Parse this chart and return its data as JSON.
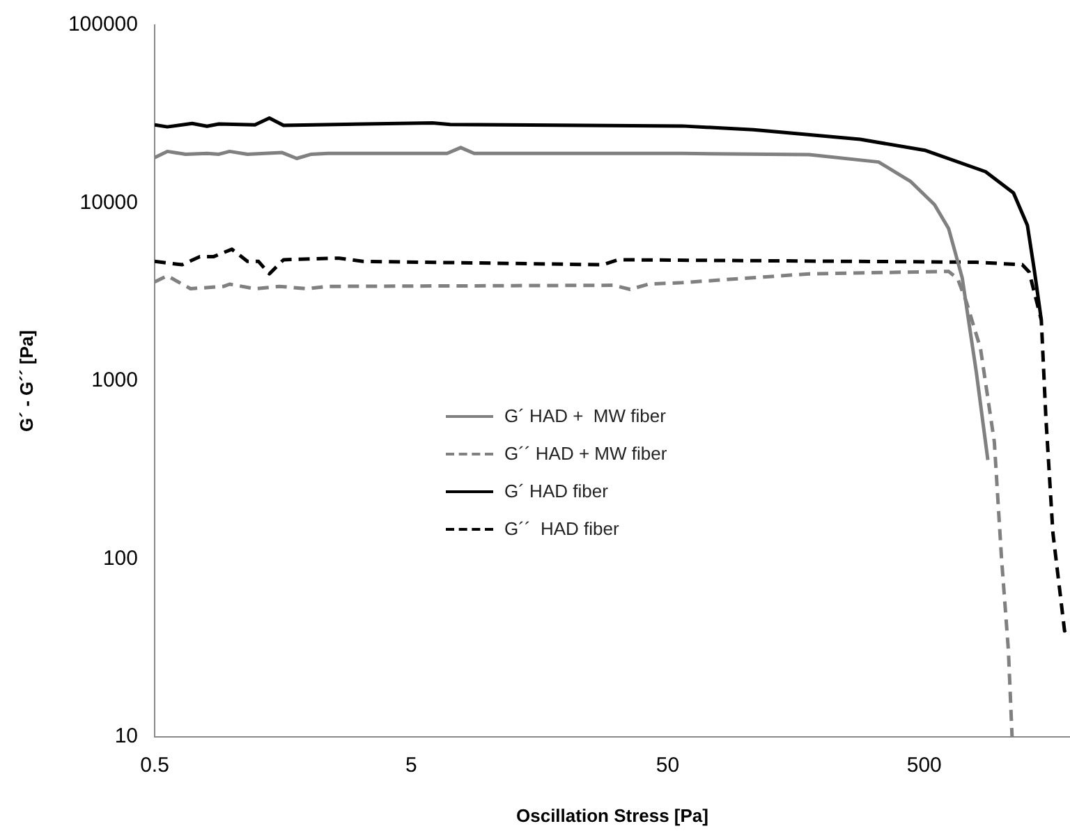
{
  "chart_data": {
    "type": "line",
    "xlabel": "Oscillation Stress [Pa]",
    "ylabel": "G´ - G´´ [Pa]",
    "log": "xy",
    "xlim": [
      0.5,
      1850
    ],
    "xticks": [
      0.5,
      5,
      50,
      500
    ],
    "ylim": [
      10,
      100000
    ],
    "yticks": [
      10,
      100,
      1000,
      10000,
      100000
    ],
    "grid": false,
    "legend": "center",
    "marker": "none",
    "series": [
      {
        "name": "G´ HAD +  MW fiber",
        "color": "#808080",
        "line_style": "solid",
        "x": [
          0.5,
          0.56,
          0.66,
          0.8,
          0.89,
          0.98,
          1.15,
          1.57,
          1.79,
          2.04,
          2.37,
          6.9,
          7.8,
          8.8,
          18.7,
          57,
          178,
          332,
          443,
          548,
          622,
          703,
          798,
          885
        ],
        "values": [
          18000,
          19500,
          18800,
          19000,
          18800,
          19500,
          18800,
          19200,
          17800,
          18800,
          19000,
          19000,
          20500,
          19000,
          19000,
          19000,
          18700,
          17000,
          13200,
          9800,
          7200,
          3800,
          1120,
          360
        ]
      },
      {
        "name": "G´´ HAD + MW fiber",
        "color": "#808080",
        "line_style": "dashed",
        "x": [
          0.5,
          0.56,
          0.69,
          0.93,
          0.98,
          1.23,
          1.53,
          1.96,
          2.37,
          30.8,
          35.7,
          42,
          57,
          178,
          622,
          675,
          730,
          828,
          938,
          1000,
          1064,
          1100
        ],
        "values": [
          3600,
          3900,
          3300,
          3400,
          3500,
          3300,
          3400,
          3300,
          3400,
          3450,
          3270,
          3500,
          3570,
          4000,
          4130,
          3760,
          2780,
          1530,
          455,
          102,
          30.8,
          10
        ]
      },
      {
        "name": "G´ HAD fiber",
        "color": "#000000",
        "line_style": "solid",
        "x": [
          0.5,
          0.56,
          0.7,
          0.8,
          0.89,
          1.23,
          1.4,
          1.59,
          6.05,
          7.1,
          57,
          108,
          138,
          281,
          502,
          867,
          1114,
          1262,
          1343,
          1430
        ],
        "values": [
          27500,
          26800,
          28000,
          27000,
          27800,
          27500,
          30000,
          27300,
          28200,
          27600,
          27100,
          25800,
          25000,
          22800,
          19800,
          15000,
          11400,
          7500,
          4200,
          2200
        ]
      },
      {
        "name": "G´´  HAD fiber",
        "color": "#000000",
        "line_style": "dashed",
        "x": [
          0.5,
          0.64,
          0.75,
          0.85,
          1.0,
          1.15,
          1.27,
          1.4,
          1.59,
          2.62,
          3.24,
          28,
          32,
          798,
          1205,
          1282,
          1430,
          1490,
          1587,
          1762,
          1845
        ],
        "values": [
          4700,
          4500,
          5000,
          5000,
          5500,
          4700,
          4700,
          4000,
          4800,
          4900,
          4700,
          4500,
          4800,
          4650,
          4500,
          4100,
          2200,
          620,
          140,
          39.4,
          42
        ]
      }
    ]
  }
}
